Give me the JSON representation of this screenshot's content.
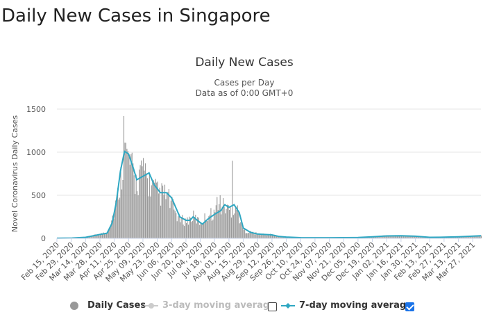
{
  "page_title": "Daily New Cases in Singapore",
  "legend": {
    "daily_cases": "Daily Cases",
    "ma3": "3-day moving average",
    "ma7": "7-day moving average",
    "ma3_checked": false,
    "ma7_checked": true
  },
  "colors": {
    "bars": "#999999",
    "ma7": "#2ea7c2",
    "ma3_disabled": "#cccccc",
    "grid": "#e6e6e6"
  },
  "chart_data": {
    "type": "bar",
    "title": "Daily New Cases",
    "subtitle_lines": [
      "Cases per Day",
      "Data as of 0:00 GMT+0"
    ],
    "ylabel": "Novel Coronavirus Daily Cases",
    "ylim": [
      0,
      1500
    ],
    "yticks": [
      0,
      500,
      1000,
      1500
    ],
    "grid": true,
    "x_start": "Feb 15, 2020",
    "x_end": "Apr 04, 2021",
    "xtick_labels": [
      "Feb 15, 2020",
      "Feb 29, 2020",
      "Mar 14, 2020",
      "Mar 28, 2020",
      "Apr 11, 2020",
      "Apr 25, 2020",
      "May 09, 2020",
      "May 23, 2020",
      "Jun 06, 2020",
      "Jun 20, 2020",
      "Jul 04, 2020",
      "Jul 18, 2020",
      "Aug 01, 2020",
      "Aug 15, 2020",
      "Aug 29, 2020",
      "Sep 12, 2020",
      "Sep 26, 2020",
      "Oct 10, 2020",
      "Oct 24, 2020",
      "Nov 07, 2020",
      "Nov 21, 2020",
      "Dec 05, 2020",
      "Dec 19, 2020",
      "Jan 02, 2021",
      "Jan 16, 2021",
      "Jan 30, 2021",
      "Feb 13, 2021",
      "Feb 27, 2021",
      "Mar 13, 2021",
      "Mar 27, 2021"
    ],
    "daily_cases_keypoints": [
      [
        "Feb 15, 2020",
        2
      ],
      [
        "Mar 01, 2020",
        3
      ],
      [
        "Mar 14, 2020",
        12
      ],
      [
        "Mar 28, 2020",
        50
      ],
      [
        "Apr 04, 2020",
        70
      ],
      [
        "Apr 09, 2020",
        250
      ],
      [
        "Apr 13, 2020",
        420
      ],
      [
        "Apr 17, 2020",
        700
      ],
      [
        "Apr 20, 2020",
        1000
      ],
      [
        "Apr 25, 2020",
        900
      ],
      [
        "May 01, 2020",
        650
      ],
      [
        "May 09, 2020",
        750
      ],
      [
        "May 16, 2020",
        620
      ],
      [
        "May 23, 2020",
        520
      ],
      [
        "Jun 01, 2020",
        500
      ],
      [
        "Jun 06, 2020",
        380
      ],
      [
        "Jun 13, 2020",
        220
      ],
      [
        "Jun 20, 2020",
        200
      ],
      [
        "Jun 27, 2020",
        250
      ],
      [
        "Jul 04, 2020",
        180
      ],
      [
        "Jul 11, 2020",
        270
      ],
      [
        "Jul 18, 2020",
        300
      ],
      [
        "Jul 25, 2020",
        380
      ],
      [
        "Aug 01, 2020",
        330
      ],
      [
        "Aug 08, 2020",
        360
      ],
      [
        "Aug 15, 2020",
        90
      ],
      [
        "Aug 22, 2020",
        70
      ],
      [
        "Aug 29, 2020",
        50
      ],
      [
        "Sep 12, 2020",
        40
      ],
      [
        "Sep 19, 2020",
        20
      ],
      [
        "Sep 26, 2020",
        15
      ],
      [
        "Oct 10, 2020",
        8
      ],
      [
        "Nov 07, 2020",
        8
      ],
      [
        "Dec 05, 2020",
        10
      ],
      [
        "Dec 19, 2020",
        20
      ],
      [
        "Jan 02, 2021",
        30
      ],
      [
        "Jan 16, 2021",
        30
      ],
      [
        "Jan 30, 2021",
        25
      ],
      [
        "Feb 13, 2021",
        12
      ],
      [
        "Feb 27, 2021",
        15
      ],
      [
        "Mar 13, 2021",
        20
      ],
      [
        "Apr 04, 2021",
        30
      ]
    ],
    "daily_cases_spikes": [
      [
        "Apr 20, 2020",
        1420
      ],
      [
        "Apr 21, 2020",
        1110
      ],
      [
        "Apr 23, 2020",
        1040
      ],
      [
        "May 06, 2020",
        850
      ],
      [
        "May 11, 2020",
        870
      ],
      [
        "Jul 20, 2020",
        480
      ],
      [
        "Jul 23, 2020",
        500
      ],
      [
        "Aug 04, 2020",
        900
      ]
    ],
    "ma7_keypoints": [
      [
        "Feb 15, 2020",
        2
      ],
      [
        "Mar 01, 2020",
        4
      ],
      [
        "Mar 14, 2020",
        12
      ],
      [
        "Mar 28, 2020",
        45
      ],
      [
        "Apr 04, 2020",
        60
      ],
      [
        "Apr 09, 2020",
        180
      ],
      [
        "Apr 13, 2020",
        420
      ],
      [
        "Apr 17, 2020",
        780
      ],
      [
        "Apr 21, 2020",
        1010
      ],
      [
        "Apr 25, 2020",
        980
      ],
      [
        "Apr 30, 2020",
        800
      ],
      [
        "May 03, 2020",
        680
      ],
      [
        "May 09, 2020",
        720
      ],
      [
        "May 15, 2020",
        760
      ],
      [
        "May 20, 2020",
        620
      ],
      [
        "May 26, 2020",
        530
      ],
      [
        "Jun 01, 2020",
        530
      ],
      [
        "Jun 06, 2020",
        470
      ],
      [
        "Jun 10, 2020",
        360
      ],
      [
        "Jun 14, 2020",
        250
      ],
      [
        "Jun 20, 2020",
        210
      ],
      [
        "Jun 24, 2020",
        210
      ],
      [
        "Jun 27, 2020",
        250
      ],
      [
        "Jul 02, 2020",
        200
      ],
      [
        "Jul 06, 2020",
        165
      ],
      [
        "Jul 12, 2020",
        230
      ],
      [
        "Jul 18, 2020",
        280
      ],
      [
        "Jul 24, 2020",
        320
      ],
      [
        "Jul 28, 2020",
        390
      ],
      [
        "Aug 01, 2020",
        360
      ],
      [
        "Aug 06, 2020",
        390
      ],
      [
        "Aug 11, 2020",
        300
      ],
      [
        "Aug 15, 2020",
        120
      ],
      [
        "Aug 22, 2020",
        70
      ],
      [
        "Aug 29, 2020",
        50
      ],
      [
        "Sep 05, 2020",
        45
      ],
      [
        "Sep 12, 2020",
        40
      ],
      [
        "Sep 19, 2020",
        22
      ],
      [
        "Sep 26, 2020",
        15
      ],
      [
        "Oct 10, 2020",
        8
      ],
      [
        "Nov 07, 2020",
        7
      ],
      [
        "Dec 05, 2020",
        10
      ],
      [
        "Dec 19, 2020",
        18
      ],
      [
        "Jan 02, 2021",
        28
      ],
      [
        "Jan 16, 2021",
        30
      ],
      [
        "Jan 30, 2021",
        25
      ],
      [
        "Feb 13, 2021",
        12
      ],
      [
        "Feb 27, 2021",
        14
      ],
      [
        "Mar 13, 2021",
        18
      ],
      [
        "Apr 04, 2021",
        30
      ]
    ]
  }
}
